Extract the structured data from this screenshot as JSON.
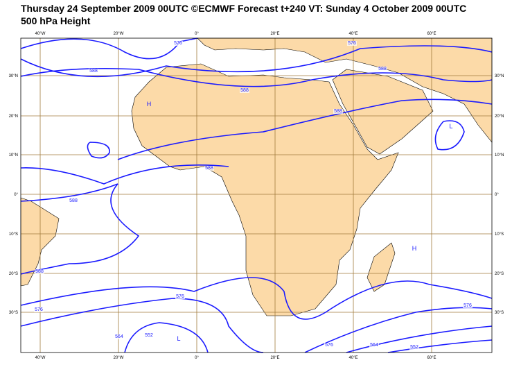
{
  "header": {
    "title": "Thursday 24 September 2009 00UTC ©ECMWF Forecast t+240 VT: Sunday 4 October 2009 00UTC",
    "subtitle": "500 hPa Height"
  },
  "map": {
    "lon_labels": [
      "40°W",
      "20°W",
      "0°",
      "20°E",
      "40°E",
      "60°E"
    ],
    "lat_labels": [
      "30°N",
      "20°N",
      "10°N",
      "0°",
      "10°S",
      "20°S",
      "30°S"
    ],
    "contour_labels": [
      "576",
      "588",
      "576",
      "588",
      "588",
      "588",
      "588",
      "588",
      "588",
      "576",
      "576",
      "564",
      "552",
      "576",
      "564",
      "552",
      "576"
    ],
    "pressure_centers": [
      "H",
      "H",
      "L",
      "L"
    ]
  }
}
